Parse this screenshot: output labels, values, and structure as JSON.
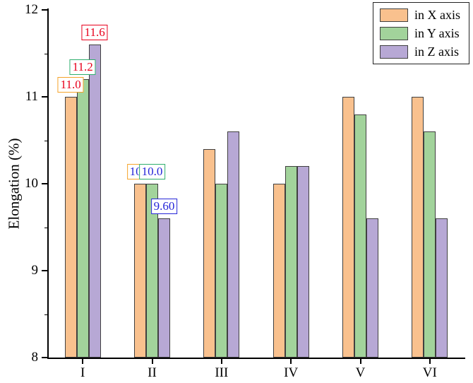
{
  "chart_data": {
    "type": "bar",
    "title": "",
    "xlabel": "",
    "ylabel": "Elongation (%)",
    "ylim": [
      8,
      12
    ],
    "yticks": [
      8,
      9,
      10,
      11,
      12
    ],
    "minor_tick_step": 0.5,
    "grid": false,
    "legend_position": "top-right",
    "categories": [
      "I",
      "II",
      "III",
      "IV",
      "V",
      "VI"
    ],
    "series": [
      {
        "name": "in X axis",
        "fill": "#F9C18E",
        "values": [
          11.0,
          10.0,
          10.4,
          10.0,
          11.0,
          11.0
        ]
      },
      {
        "name": "in Y axis",
        "fill": "#A2D39B",
        "values": [
          11.2,
          10.0,
          10.0,
          10.2,
          10.8,
          10.6
        ]
      },
      {
        "name": "in Z axis",
        "fill": "#B7A8D5",
        "values": [
          11.6,
          9.6,
          10.6,
          10.2,
          9.6,
          9.6
        ]
      }
    ],
    "bar_border_color": "#404040",
    "annotations": [
      {
        "group": 0,
        "series": 0,
        "text": "11.0",
        "text_color": "#e8001c",
        "border_color": "#f5a32a"
      },
      {
        "group": 0,
        "series": 1,
        "text": "11.2",
        "text_color": "#e8001c",
        "border_color": "#2fae6e"
      },
      {
        "group": 0,
        "series": 2,
        "text": "11.6",
        "text_color": "#e8001c",
        "border_color": "#e8001c"
      },
      {
        "group": 1,
        "series": 0,
        "text": "10.0",
        "text_color": "#2525d8",
        "border_color": "#f5a32a"
      },
      {
        "group": 1,
        "series": 1,
        "text": "10.0",
        "text_color": "#2525d8",
        "border_color": "#2fae6e"
      },
      {
        "group": 1,
        "series": 2,
        "text": "9.60",
        "text_color": "#2525d8",
        "border_color": "#2525d8"
      }
    ]
  }
}
